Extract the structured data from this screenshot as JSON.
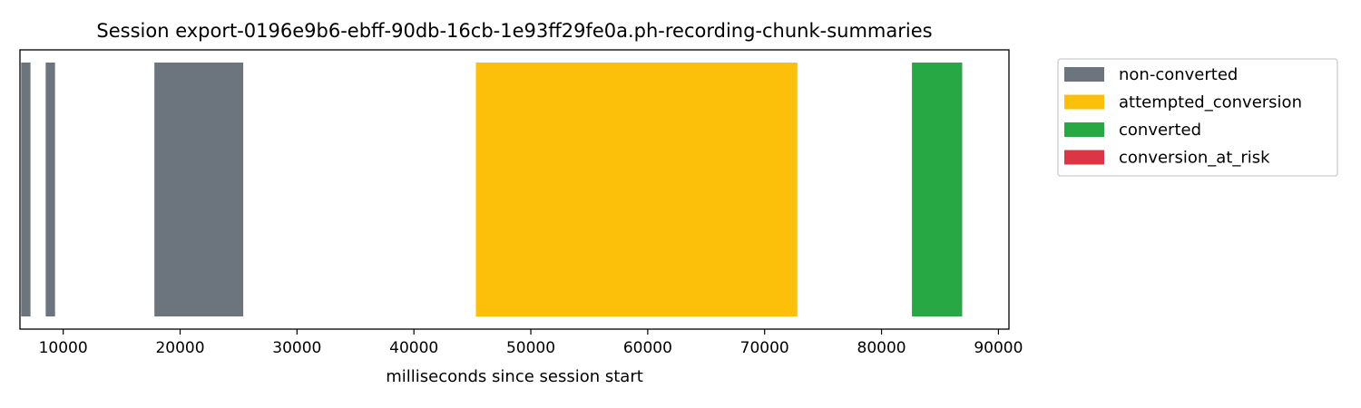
{
  "chart_data": {
    "type": "bar",
    "orientation": "horizontal-timeline",
    "title": "Session export-0196e9b6-ebff-90db-16cb-1e93ff29fe0a.ph-recording-chunk-summaries",
    "xlabel": "milliseconds since session start",
    "ylabel": "",
    "xlim": [
      6300,
      90900
    ],
    "x_ticks": [
      10000,
      20000,
      30000,
      40000,
      50000,
      60000,
      70000,
      80000,
      90000
    ],
    "x_tick_labels": [
      "10000",
      "20000",
      "30000",
      "40000",
      "50000",
      "60000",
      "70000",
      "80000",
      "90000"
    ],
    "grid": false,
    "legend_position": "outside-top-right",
    "series": [
      {
        "name": "non-converted",
        "color": "#6c757d",
        "segments": [
          {
            "start": 6400,
            "end": 7200
          },
          {
            "start": 8500,
            "end": 9300
          },
          {
            "start": 17800,
            "end": 25400
          }
        ]
      },
      {
        "name": "attempted_conversion",
        "color": "#fdc00a",
        "segments": [
          {
            "start": 45300,
            "end": 72800
          }
        ]
      },
      {
        "name": "converted",
        "color": "#28a745",
        "segments": [
          {
            "start": 82600,
            "end": 86900
          }
        ]
      },
      {
        "name": "conversion_at_risk",
        "color": "#dc3545",
        "segments": []
      }
    ]
  }
}
